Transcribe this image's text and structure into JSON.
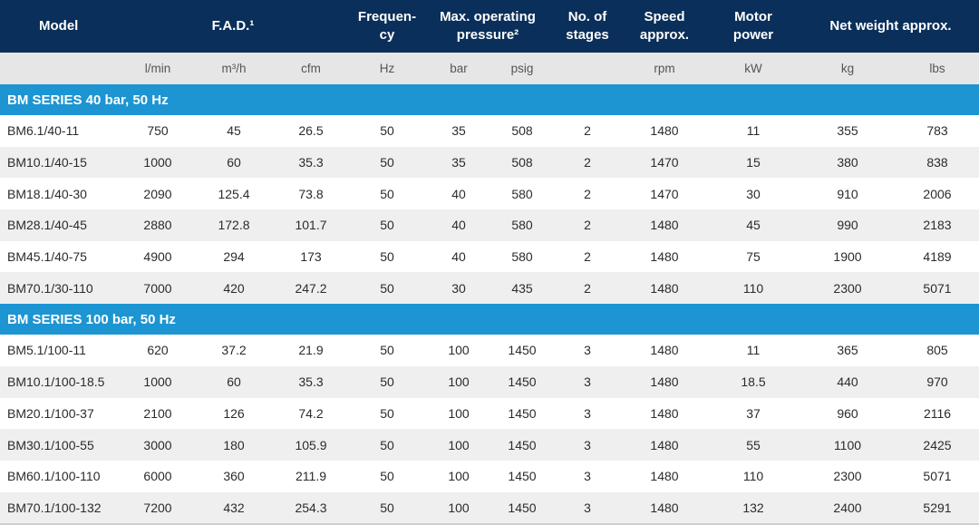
{
  "header": {
    "model": "Model",
    "fad": "F.A.D.¹",
    "frequency": "Frequen-\ncy",
    "pressure": "Max. operating\npressure²",
    "stages": "No. of\nstages",
    "speed": "Speed\napprox.",
    "motor": "Motor\npower",
    "weight": "Net weight approx."
  },
  "units": [
    "",
    "l/min",
    "m³/h",
    "cfm",
    "Hz",
    "bar",
    "psig",
    "",
    "rpm",
    "kW",
    "kg",
    "lbs"
  ],
  "sections": [
    {
      "title": "BM SERIES 40 bar, 50 Hz",
      "rows": [
        [
          "BM6.1/40-11",
          "750",
          "45",
          "26.5",
          "50",
          "35",
          "508",
          "2",
          "1480",
          "11",
          "355",
          "783"
        ],
        [
          "BM10.1/40-15",
          "1000",
          "60",
          "35.3",
          "50",
          "35",
          "508",
          "2",
          "1470",
          "15",
          "380",
          "838"
        ],
        [
          "BM18.1/40-30",
          "2090",
          "125.4",
          "73.8",
          "50",
          "40",
          "580",
          "2",
          "1470",
          "30",
          "910",
          "2006"
        ],
        [
          "BM28.1/40-45",
          "2880",
          "172.8",
          "101.7",
          "50",
          "40",
          "580",
          "2",
          "1480",
          "45",
          "990",
          "2183"
        ],
        [
          "BM45.1/40-75",
          "4900",
          "294",
          "173",
          "50",
          "40",
          "580",
          "2",
          "1480",
          "75",
          "1900",
          "4189"
        ],
        [
          "BM70.1/30-110",
          "7000",
          "420",
          "247.2",
          "50",
          "30",
          "435",
          "2",
          "1480",
          "110",
          "2300",
          "5071"
        ]
      ]
    },
    {
      "title": "BM SERIES 100 bar, 50 Hz",
      "rows": [
        [
          "BM5.1/100-11",
          "620",
          "37.2",
          "21.9",
          "50",
          "100",
          "1450",
          "3",
          "1480",
          "11",
          "365",
          "805"
        ],
        [
          "BM10.1/100-18.5",
          "1000",
          "60",
          "35.3",
          "50",
          "100",
          "1450",
          "3",
          "1480",
          "18.5",
          "440",
          "970"
        ],
        [
          "BM20.1/100-37",
          "2100",
          "126",
          "74.2",
          "50",
          "100",
          "1450",
          "3",
          "1480",
          "37",
          "960",
          "2116"
        ],
        [
          "BM30.1/100-55",
          "3000",
          "180",
          "105.9",
          "50",
          "100",
          "1450",
          "3",
          "1480",
          "55",
          "1100",
          "2425"
        ],
        [
          "BM60.1/100-110",
          "6000",
          "360",
          "211.9",
          "50",
          "100",
          "1450",
          "3",
          "1480",
          "110",
          "2300",
          "5071"
        ],
        [
          "BM70.1/100-132",
          "7200",
          "432",
          "254.3",
          "50",
          "100",
          "1450",
          "3",
          "1480",
          "132",
          "2400",
          "5291"
        ]
      ]
    }
  ],
  "colors": {
    "header_bg": "#0a2f5a",
    "section_bg": "#1c95d2",
    "units_bg": "#e6e6e6",
    "stripe_bg": "#efefef"
  }
}
